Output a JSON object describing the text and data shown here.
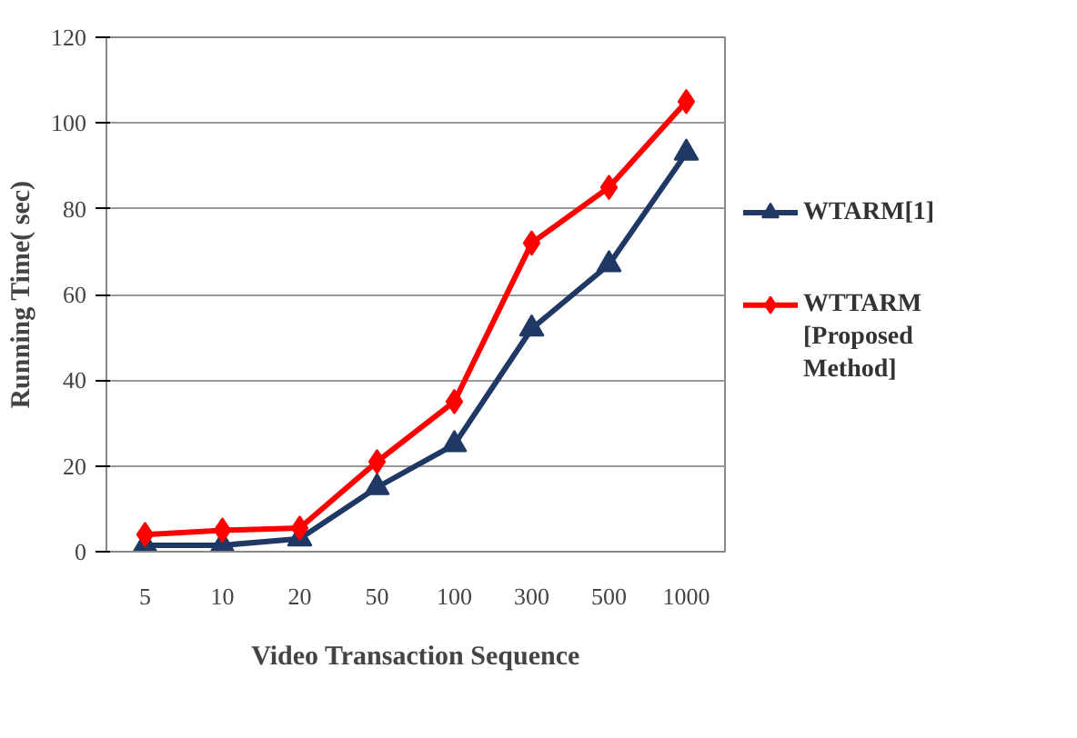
{
  "chart_data": {
    "type": "line",
    "xlabel": "Video Transaction Sequence",
    "ylabel": "Running Time( sec)",
    "categories": [
      "5",
      "10",
      "20",
      "50",
      "100",
      "300",
      "500",
      "1000"
    ],
    "series": [
      {
        "name": "WTARM[1]",
        "color": "#1f3864",
        "marker": "triangle",
        "values": [
          1.5,
          1.5,
          3,
          15,
          25,
          52,
          67,
          93
        ]
      },
      {
        "name": "WTTARM\n[Proposed\nMethod]",
        "color": "#ff0000",
        "marker": "diamond",
        "values": [
          4,
          5,
          5.5,
          21,
          35,
          72,
          85,
          105
        ]
      }
    ],
    "ylim": [
      0,
      120
    ],
    "yticks": [
      0,
      20,
      40,
      60,
      80,
      100,
      120
    ],
    "grid": "y",
    "legend": "right"
  }
}
